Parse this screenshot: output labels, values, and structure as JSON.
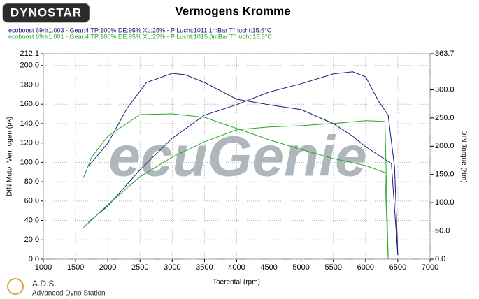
{
  "logo": "DYNOSTAR",
  "footer": {
    "brand": "A.D.S.",
    "subtitle": "Advanced Dyno Station"
  },
  "chart_data": {
    "type": "line",
    "title": "Vermogens Kromme",
    "watermark": "ecuGenie",
    "legend": [
      {
        "label": "ecoboost 69rlr1.003 - Gear:4 TP:100% DE:95% XL:25%   - P Lucht:1011.1mBar T° lucht:15.6°C",
        "color": "#1a1a7a"
      },
      {
        "label": "ecoboost 69rlr1.001 - Gear:4 TP:100% DE:95% XL:25%   - P Lucht:1015.0mBar T° lucht:15.8°C",
        "color": "#22aa22"
      }
    ],
    "x_label": "Toerental (rpm)",
    "y_label": "DIN Motor Vermogen (pk)",
    "y2_label": "DIN Torque (Nm)",
    "xlim": [
      1000,
      7000
    ],
    "xticks": [
      1000,
      1500,
      2000,
      2500,
      3000,
      3500,
      4000,
      4500,
      5000,
      5500,
      6000,
      6500,
      7000
    ],
    "ylim": [
      0,
      212.1
    ],
    "yticks": [
      {
        "value": 0,
        "label": "0.0"
      },
      {
        "value": 20,
        "label": "20.0"
      },
      {
        "value": 40,
        "label": "40.0"
      },
      {
        "value": 60,
        "label": "60.0"
      },
      {
        "value": 80,
        "label": "80.0"
      },
      {
        "value": 100,
        "label": "100.0"
      },
      {
        "value": 120,
        "label": "120.0"
      },
      {
        "value": 140,
        "label": "140.0"
      },
      {
        "value": 160,
        "label": "160.0"
      },
      {
        "value": 180,
        "label": "180.0"
      },
      {
        "value": 200,
        "label": "200.0"
      },
      {
        "value": 212.1,
        "label": "212.1"
      }
    ],
    "y2lim": [
      0,
      363.7
    ],
    "y2ticks": [
      {
        "value": 0,
        "label": "0.0"
      },
      {
        "value": 50,
        "label": "50.0"
      },
      {
        "value": 100,
        "label": "100.0"
      },
      {
        "value": 150,
        "label": "150.0"
      },
      {
        "value": 200,
        "label": "200.0"
      },
      {
        "value": 250,
        "label": "250.0"
      },
      {
        "value": 300,
        "label": "300.0"
      },
      {
        "value": 363.7,
        "label": "363.7"
      }
    ],
    "grid": true,
    "series": [
      {
        "color": "#1a1a7a",
        "axis": "y",
        "x": [
          1700,
          2000,
          2500,
          3000,
          3500,
          4000,
          4500,
          5000,
          5500,
          5800,
          6000,
          6200,
          6350,
          6450,
          6500
        ],
        "values": [
          38.3,
          54.9,
          92.4,
          124.9,
          148.7,
          159.6,
          172.6,
          181.2,
          191.3,
          193.5,
          188.4,
          163.2,
          148.7,
          94.6,
          4.3
        ]
      },
      {
        "color": "#1a1a7a",
        "axis": "y2",
        "x": [
          1700,
          2000,
          2300,
          2600,
          3000,
          3200,
          3500,
          4000,
          4500,
          5000,
          5500,
          5800,
          6000,
          6200,
          6400,
          6500
        ],
        "values": [
          164.5,
          205.4,
          267.2,
          313.0,
          329.1,
          326.6,
          313.0,
          283.3,
          273.4,
          264.8,
          240.0,
          217.7,
          199.2,
          184.3,
          169.5,
          7.4
        ]
      },
      {
        "color": "#22aa22",
        "axis": "y",
        "x": [
          1620,
          2000,
          2500,
          3000,
          3500,
          4000,
          4500,
          5000,
          5500,
          6000,
          6300,
          6350
        ],
        "values": [
          32.5,
          56.3,
          85.2,
          105.4,
          121.3,
          133.6,
          136.5,
          137.9,
          140.1,
          143.0,
          142.2,
          0
        ]
      },
      {
        "color": "#22aa22",
        "axis": "y2",
        "x": [
          1620,
          1750,
          2000,
          2500,
          3000,
          3500,
          4000,
          4500,
          5000,
          5500,
          6000,
          6300,
          6350
        ],
        "values": [
          143.5,
          180.6,
          217.7,
          256.1,
          257.3,
          251.1,
          231.4,
          211.6,
          194.2,
          178.2,
          165.8,
          153.4,
          0
        ]
      }
    ]
  }
}
